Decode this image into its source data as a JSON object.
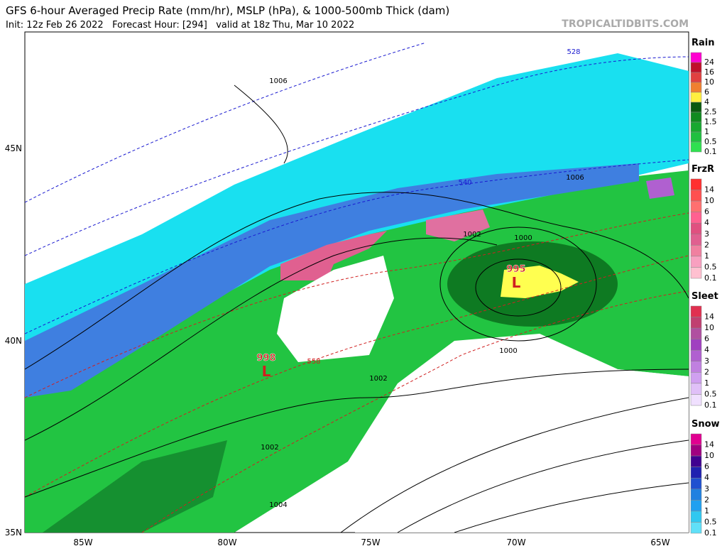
{
  "header": {
    "title": "GFS 6-hour Averaged Precip Rate (mm/hr), MSLP (hPa), & 1000-500mb Thick (dam)",
    "subtitle": "Init: 12z Feb 26 2022   Forecast Hour: [294]   valid at 18z Thu, Mar 10 2022",
    "site": "TROPICALTIDBITS.COM"
  },
  "map": {
    "lat_labels": [
      "45N",
      "40N",
      "35N"
    ],
    "lon_labels": [
      "85W",
      "80W",
      "75W",
      "70W",
      "65W"
    ],
    "isobar_labels": [
      "1006",
      "1006",
      "1002",
      "1000",
      "1000",
      "1002",
      "1002",
      "1004"
    ],
    "thickness_labels": [
      "528",
      "540",
      "558"
    ],
    "lows": [
      {
        "pressure": "995",
        "symbol": "L"
      },
      {
        "pressure": "998",
        "symbol": "L"
      }
    ]
  },
  "legend": [
    {
      "title": "Rain",
      "labels": [
        "24",
        "16",
        "10",
        "6",
        "4",
        "2.5",
        "1.5",
        "1",
        "0.5",
        "0.1"
      ],
      "colors": [
        "#ff00d0",
        "#c0102a",
        "#e04040",
        "#f08030",
        "#fff040",
        "#0a5a10",
        "#108a20",
        "#18a830",
        "#20c040",
        "#30e050"
      ]
    },
    {
      "title": "FrzR",
      "labels": [
        "14",
        "10",
        "6",
        "4",
        "3",
        "2",
        "1",
        "0.5",
        "0.1"
      ],
      "colors": [
        "#ff3030",
        "#ff5050",
        "#ff7070",
        "#ff6090",
        "#e05080",
        "#e06090",
        "#f080a0",
        "#f8a0c0",
        "#ffc0d0"
      ]
    },
    {
      "title": "Sleet",
      "labels": [
        "14",
        "10",
        "6",
        "4",
        "3",
        "2",
        "1",
        "0.5",
        "0.1"
      ],
      "colors": [
        "#e03050",
        "#c04070",
        "#b050a0",
        "#a040c0",
        "#b060d0",
        "#c080e0",
        "#d0a0f0",
        "#e0c0f8",
        "#f0e0ff"
      ]
    },
    {
      "title": "Snow",
      "labels": [
        "14",
        "10",
        "6",
        "4",
        "3",
        "2",
        "1",
        "0.5",
        "0.1"
      ],
      "colors": [
        "#e00090",
        "#a00080",
        "#400090",
        "#2020b0",
        "#2050d0",
        "#2080e0",
        "#20a0f0",
        "#30c8f0",
        "#60e0f8"
      ]
    }
  ]
}
